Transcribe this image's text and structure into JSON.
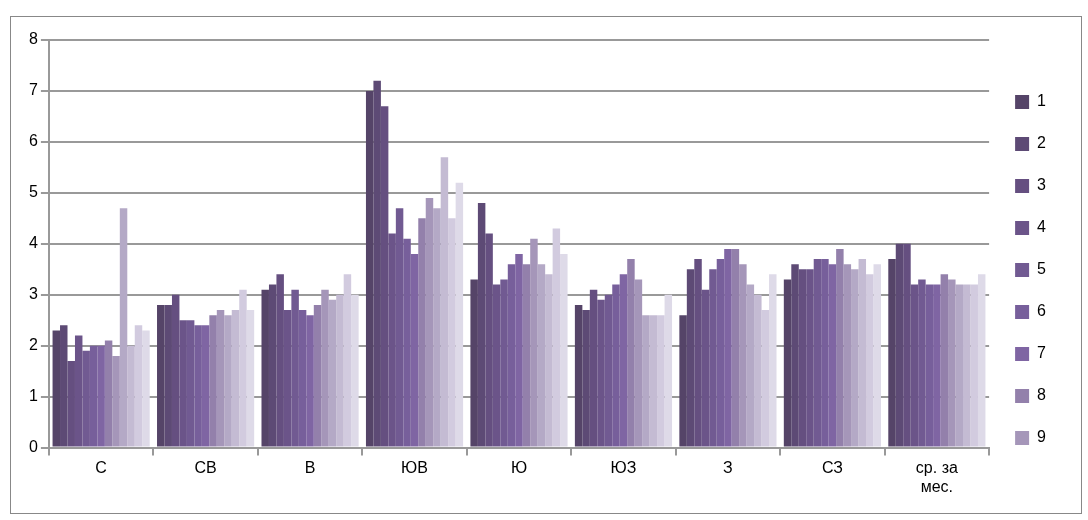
{
  "chart_data": {
    "type": "bar",
    "categories": [
      "С",
      "СВ",
      "В",
      "ЮВ",
      "Ю",
      "ЮЗ",
      "З",
      "СЗ",
      "ср. за мес."
    ],
    "series": [
      {
        "name": "1",
        "color": "#554468",
        "values": [
          2.3,
          2.8,
          3.1,
          7.0,
          3.3,
          2.8,
          2.6,
          3.3,
          3.7
        ]
      },
      {
        "name": "2",
        "color": "#5d4a75",
        "values": [
          2.4,
          2.8,
          3.2,
          7.2,
          4.8,
          2.7,
          3.5,
          3.6,
          4.0
        ]
      },
      {
        "name": "3",
        "color": "#654f80",
        "values": [
          1.7,
          3.0,
          3.4,
          6.7,
          4.2,
          3.1,
          3.7,
          3.5,
          4.0
        ]
      },
      {
        "name": "4",
        "color": "#6b5489",
        "values": [
          2.2,
          2.5,
          2.7,
          4.2,
          3.2,
          2.9,
          3.1,
          3.5,
          3.2
        ]
      },
      {
        "name": "5",
        "color": "#715a92",
        "values": [
          1.9,
          2.5,
          3.1,
          4.7,
          3.3,
          3.0,
          3.5,
          3.7,
          3.3
        ]
      },
      {
        "name": "6",
        "color": "#775f9b",
        "values": [
          2.0,
          2.4,
          2.7,
          4.1,
          3.6,
          3.2,
          3.7,
          3.7,
          3.2
        ]
      },
      {
        "name": "7",
        "color": "#7f65a3",
        "values": [
          2.0,
          2.4,
          2.6,
          3.8,
          3.8,
          3.4,
          3.9,
          3.6,
          3.2
        ]
      },
      {
        "name": "8",
        "color": "#9380ab",
        "values": [
          2.1,
          2.6,
          2.8,
          4.5,
          3.6,
          3.7,
          3.9,
          3.9,
          3.4
        ]
      },
      {
        "name": "9",
        "color": "#a596b9",
        "values": [
          1.8,
          2.7,
          3.1,
          4.9,
          4.1,
          3.3,
          3.6,
          3.6,
          3.3
        ]
      },
      {
        "color": "#b4a9c6",
        "values": [
          4.7,
          2.6,
          2.9,
          4.7,
          3.6,
          2.6,
          3.2,
          3.5,
          3.2
        ]
      },
      {
        "color": "#c4bbd3",
        "values": [
          2.0,
          2.7,
          3.0,
          5.7,
          3.4,
          2.6,
          3.0,
          3.7,
          3.2
        ]
      },
      {
        "color": "#d2cbdf",
        "values": [
          2.4,
          3.1,
          3.4,
          4.5,
          4.3,
          2.6,
          2.7,
          3.4,
          3.2
        ]
      },
      {
        "color": "#dedae8",
        "values": [
          2.3,
          2.7,
          3.0,
          5.2,
          3.8,
          3.0,
          3.4,
          3.6,
          3.4
        ]
      }
    ],
    "ylim": [
      0,
      8
    ],
    "yticks": [
      0,
      1,
      2,
      3,
      4,
      5,
      6,
      7,
      8
    ],
    "grid": "y",
    "legend": "right"
  }
}
